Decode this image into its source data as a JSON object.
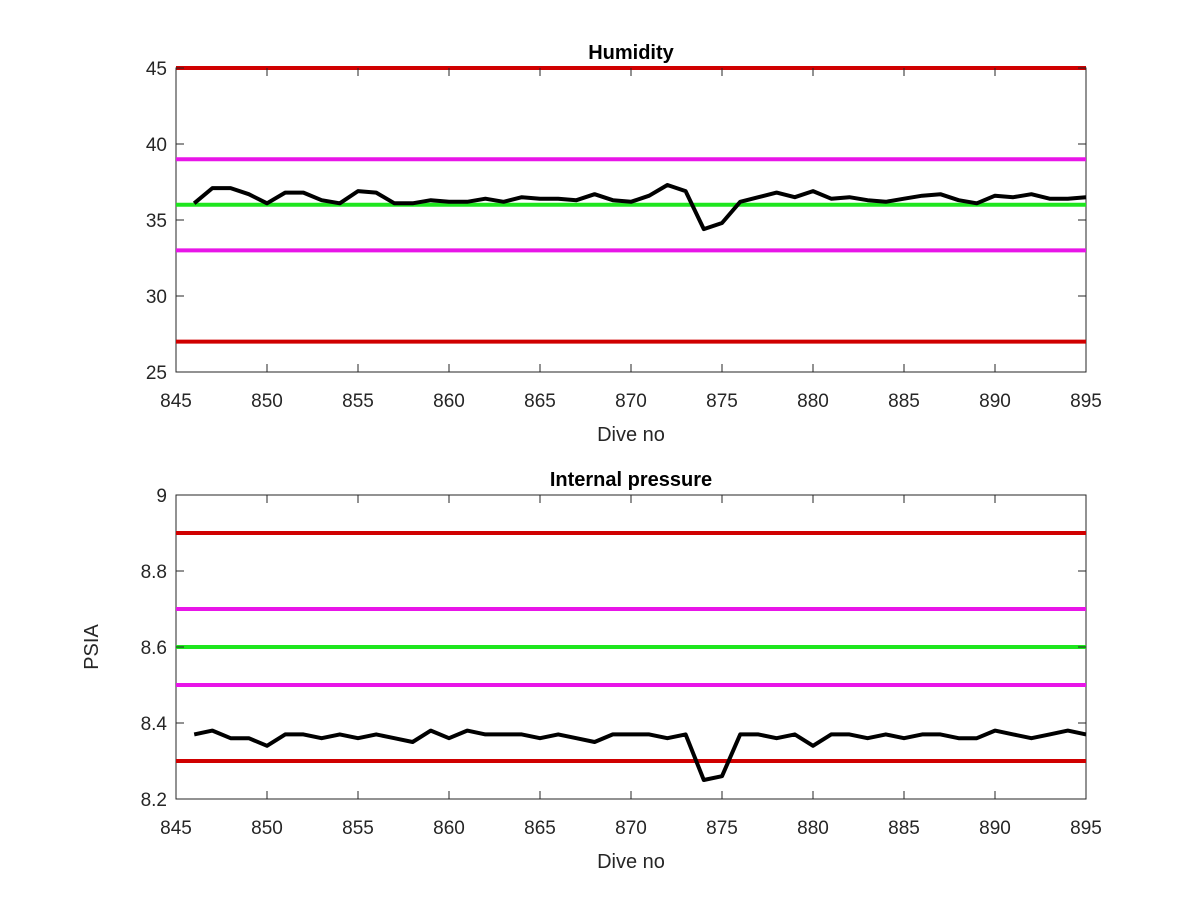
{
  "chart_data": [
    {
      "type": "line",
      "title": "Humidity",
      "xlabel": "Dive no",
      "ylabel": "",
      "xlim": [
        845,
        895
      ],
      "ylim": [
        25,
        45
      ],
      "xticks": [
        "845",
        "850",
        "855",
        "860",
        "865",
        "870",
        "875",
        "880",
        "885",
        "890",
        "895"
      ],
      "yticks": [
        "25",
        "30",
        "35",
        "40",
        "45"
      ],
      "grid": false,
      "thresholds": [
        {
          "value": 45,
          "color": "#d00000"
        },
        {
          "value": 39,
          "color": "#e815e8"
        },
        {
          "value": 36,
          "color": "#1ee61e"
        },
        {
          "value": 33,
          "color": "#e815e8"
        },
        {
          "value": 27,
          "color": "#d00000"
        }
      ],
      "series": [
        {
          "color": "#000000",
          "x": [
            846,
            847,
            848,
            849,
            850,
            851,
            852,
            853,
            854,
            855,
            856,
            857,
            858,
            859,
            860,
            861,
            862,
            863,
            864,
            865,
            866,
            867,
            868,
            869,
            870,
            871,
            872,
            873,
            874,
            875,
            876,
            877,
            878,
            879,
            880,
            881,
            882,
            883,
            884,
            885,
            886,
            887,
            888,
            889,
            890,
            891,
            892,
            893,
            894,
            895
          ],
          "values": [
            36.1,
            37.1,
            37.1,
            36.7,
            36.1,
            36.8,
            36.8,
            36.3,
            36.1,
            36.9,
            36.8,
            36.1,
            36.1,
            36.3,
            36.2,
            36.2,
            36.4,
            36.2,
            36.5,
            36.4,
            36.4,
            36.3,
            36.7,
            36.3,
            36.2,
            36.6,
            37.3,
            36.9,
            34.4,
            34.8,
            36.2,
            36.5,
            36.8,
            36.5,
            36.9,
            36.4,
            36.5,
            36.3,
            36.2,
            36.4,
            36.6,
            36.7,
            36.3,
            36.1,
            36.6,
            36.5,
            36.7,
            36.4,
            36.4,
            36.5
          ]
        }
      ]
    },
    {
      "type": "line",
      "title": "Internal pressure",
      "xlabel": "Dive no",
      "ylabel": "PSIA",
      "xlim": [
        845,
        895
      ],
      "ylim": [
        8.2,
        9
      ],
      "xticks": [
        "845",
        "850",
        "855",
        "860",
        "865",
        "870",
        "875",
        "880",
        "885",
        "890",
        "895"
      ],
      "yticks": [
        "8.2",
        "8.4",
        "8.6",
        "8.8",
        "9"
      ],
      "grid": false,
      "thresholds": [
        {
          "value": 8.9,
          "color": "#d00000"
        },
        {
          "value": 8.7,
          "color": "#e815e8"
        },
        {
          "value": 8.6,
          "color": "#1ee61e"
        },
        {
          "value": 8.5,
          "color": "#e815e8"
        },
        {
          "value": 8.3,
          "color": "#d00000"
        }
      ],
      "series": [
        {
          "color": "#000000",
          "x": [
            846,
            847,
            848,
            849,
            850,
            851,
            852,
            853,
            854,
            855,
            856,
            857,
            858,
            859,
            860,
            861,
            862,
            863,
            864,
            865,
            866,
            867,
            868,
            869,
            870,
            871,
            872,
            873,
            874,
            875,
            876,
            877,
            878,
            879,
            880,
            881,
            882,
            883,
            884,
            885,
            886,
            887,
            888,
            889,
            890,
            891,
            892,
            893,
            894,
            895
          ],
          "values": [
            8.37,
            8.38,
            8.36,
            8.36,
            8.34,
            8.37,
            8.37,
            8.36,
            8.37,
            8.36,
            8.37,
            8.36,
            8.35,
            8.38,
            8.36,
            8.38,
            8.37,
            8.37,
            8.37,
            8.36,
            8.37,
            8.36,
            8.35,
            8.37,
            8.37,
            8.37,
            8.36,
            8.37,
            8.25,
            8.26,
            8.37,
            8.37,
            8.36,
            8.37,
            8.34,
            8.37,
            8.37,
            8.36,
            8.37,
            8.36,
            8.37,
            8.37,
            8.36,
            8.36,
            8.38,
            8.37,
            8.36,
            8.37,
            8.38,
            8.37
          ]
        }
      ]
    }
  ]
}
